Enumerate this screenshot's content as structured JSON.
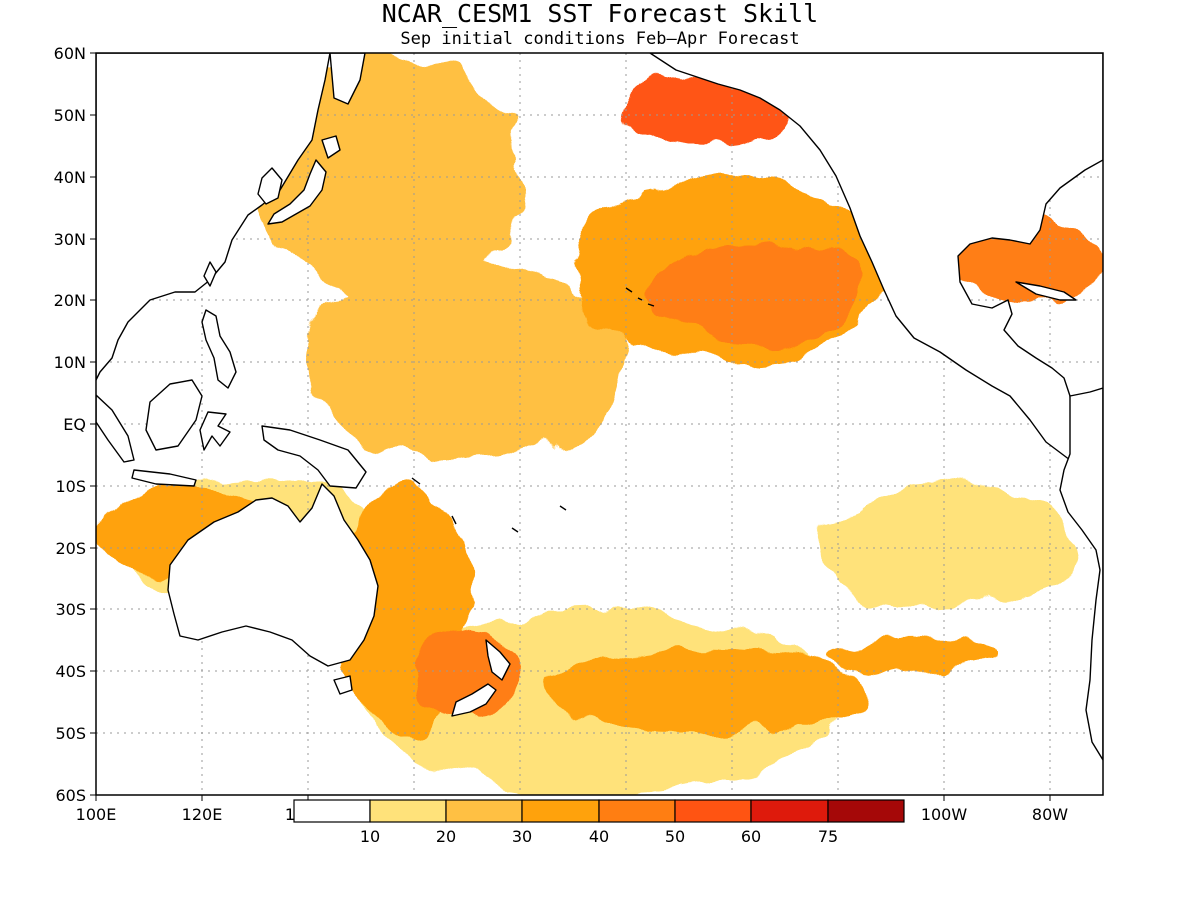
{
  "title": "NCAR_CESM1 SST Forecast Skill",
  "subtitle": "Sep initial conditions  Feb–Apr Forecast",
  "lat_labels": [
    "60N",
    "50N",
    "40N",
    "30N",
    "20N",
    "10N",
    "EQ",
    "10S",
    "20S",
    "30S",
    "40S",
    "50S",
    "60S"
  ],
  "lon_labels": [
    "100E",
    "120E",
    "1",
    "100W",
    "80W"
  ],
  "colorbar": {
    "labels": [
      "10",
      "20",
      "30",
      "40",
      "50",
      "60",
      "75"
    ],
    "colors": [
      "#ffffff",
      "#ffe27a",
      "#ffc043",
      "#ffa20c",
      "#ff7e12",
      "#ff5412",
      "#de1a0c",
      "#a50808"
    ]
  },
  "map_data": {
    "projection": "cylindrical equidistant",
    "lon_range": [
      100,
      290
    ],
    "lat_range": [
      -60,
      60
    ],
    "grid": true,
    "field": "SST forecast skill (%)",
    "regions": [
      {
        "lon": [
          105,
          155
        ],
        "lat": [
          -30,
          -8
        ],
        "level": 1
      },
      {
        "lon": [
          235,
          285
        ],
        "lat": [
          -30,
          -10
        ],
        "level": 1
      },
      {
        "lon": [
          150,
          240
        ],
        "lat": [
          -60,
          -30
        ],
        "level": 1
      },
      {
        "lon": [
          130,
          180
        ],
        "lat": [
          20,
          60
        ],
        "level": 2
      },
      {
        "lon": [
          140,
          200
        ],
        "lat": [
          -6,
          26
        ],
        "level": 2
      },
      {
        "lon": [
          100,
          135
        ],
        "lat": [
          -25,
          -10
        ],
        "level": 3
      },
      {
        "lon": [
          145,
          170
        ],
        "lat": [
          -50,
          -10
        ],
        "level": 3
      },
      {
        "lon": [
          190,
          250
        ],
        "lat": [
          10,
          40
        ],
        "level": 3
      },
      {
        "lon": [
          185,
          245
        ],
        "lat": [
          -50,
          -36
        ],
        "level": 3
      },
      {
        "lon": [
          238,
          270
        ],
        "lat": [
          -40,
          -35
        ],
        "level": 3
      },
      {
        "lon": [
          205,
          245
        ],
        "lat": [
          13,
          30
        ],
        "level": 4
      },
      {
        "lon": [
          160,
          180
        ],
        "lat": [
          -47,
          -33
        ],
        "level": 4
      },
      {
        "lon": [
          200,
          230
        ],
        "lat": [
          45,
          57
        ],
        "level": 5
      },
      {
        "lon": [
          262,
          290
        ],
        "lat": [
          20,
          33
        ],
        "level": 4
      }
    ]
  }
}
